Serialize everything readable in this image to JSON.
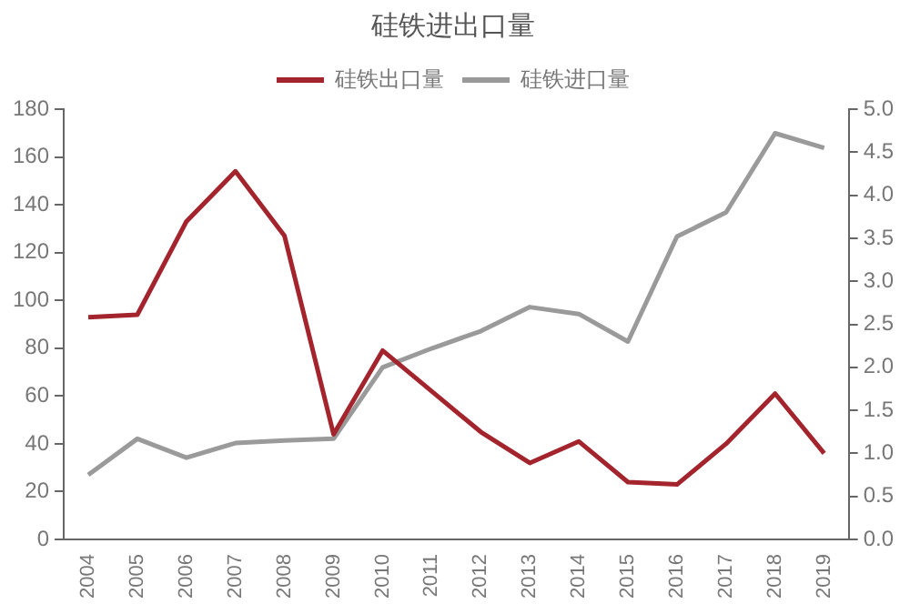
{
  "chart_data": {
    "type": "line",
    "title": "硅铁进出口量",
    "categories": [
      "2004",
      "2005",
      "2006",
      "2007",
      "2008",
      "2009",
      "2010",
      "2011",
      "2012",
      "2013",
      "2014",
      "2015",
      "2016",
      "2017",
      "2018",
      "2019"
    ],
    "series": [
      {
        "name": "硅铁出口量",
        "color": "#a3242c",
        "values": [
          93,
          94,
          133,
          154,
          127,
          44,
          79,
          62,
          45,
          32,
          41,
          24,
          23,
          40,
          61,
          36
        ]
      },
      {
        "name": "硅铁进口量",
        "color": "#9a9a9a",
        "axis": "y2",
        "values": [
          0.75,
          1.17,
          0.95,
          1.12,
          1.15,
          1.17,
          2.0,
          2.22,
          2.42,
          2.7,
          2.62,
          2.3,
          3.52,
          3.8,
          4.72,
          4.55
        ]
      }
    ],
    "ylim": [
      0,
      180
    ],
    "yticks": [
      0,
      20,
      40,
      60,
      80,
      100,
      120,
      140,
      160,
      180
    ],
    "y2lim": [
      0,
      5
    ],
    "y2ticks": [
      {
        "value": 0,
        "label": "0.0"
      },
      {
        "value": 0.5,
        "label": "0.5"
      },
      {
        "value": 1,
        "label": "1.0"
      },
      {
        "value": 1.5,
        "label": "1.5"
      },
      {
        "value": 2,
        "label": "2.0"
      },
      {
        "value": 2.5,
        "label": "2.5"
      },
      {
        "value": 3,
        "label": "3.0"
      },
      {
        "value": 3.5,
        "label": "3.5"
      },
      {
        "value": 4,
        "label": "4.0"
      },
      {
        "value": 4.5,
        "label": "4.5"
      },
      {
        "value": 5,
        "label": "5.0"
      }
    ],
    "grid": false,
    "legend": "top",
    "marker": "none",
    "line_style": "solid"
  }
}
